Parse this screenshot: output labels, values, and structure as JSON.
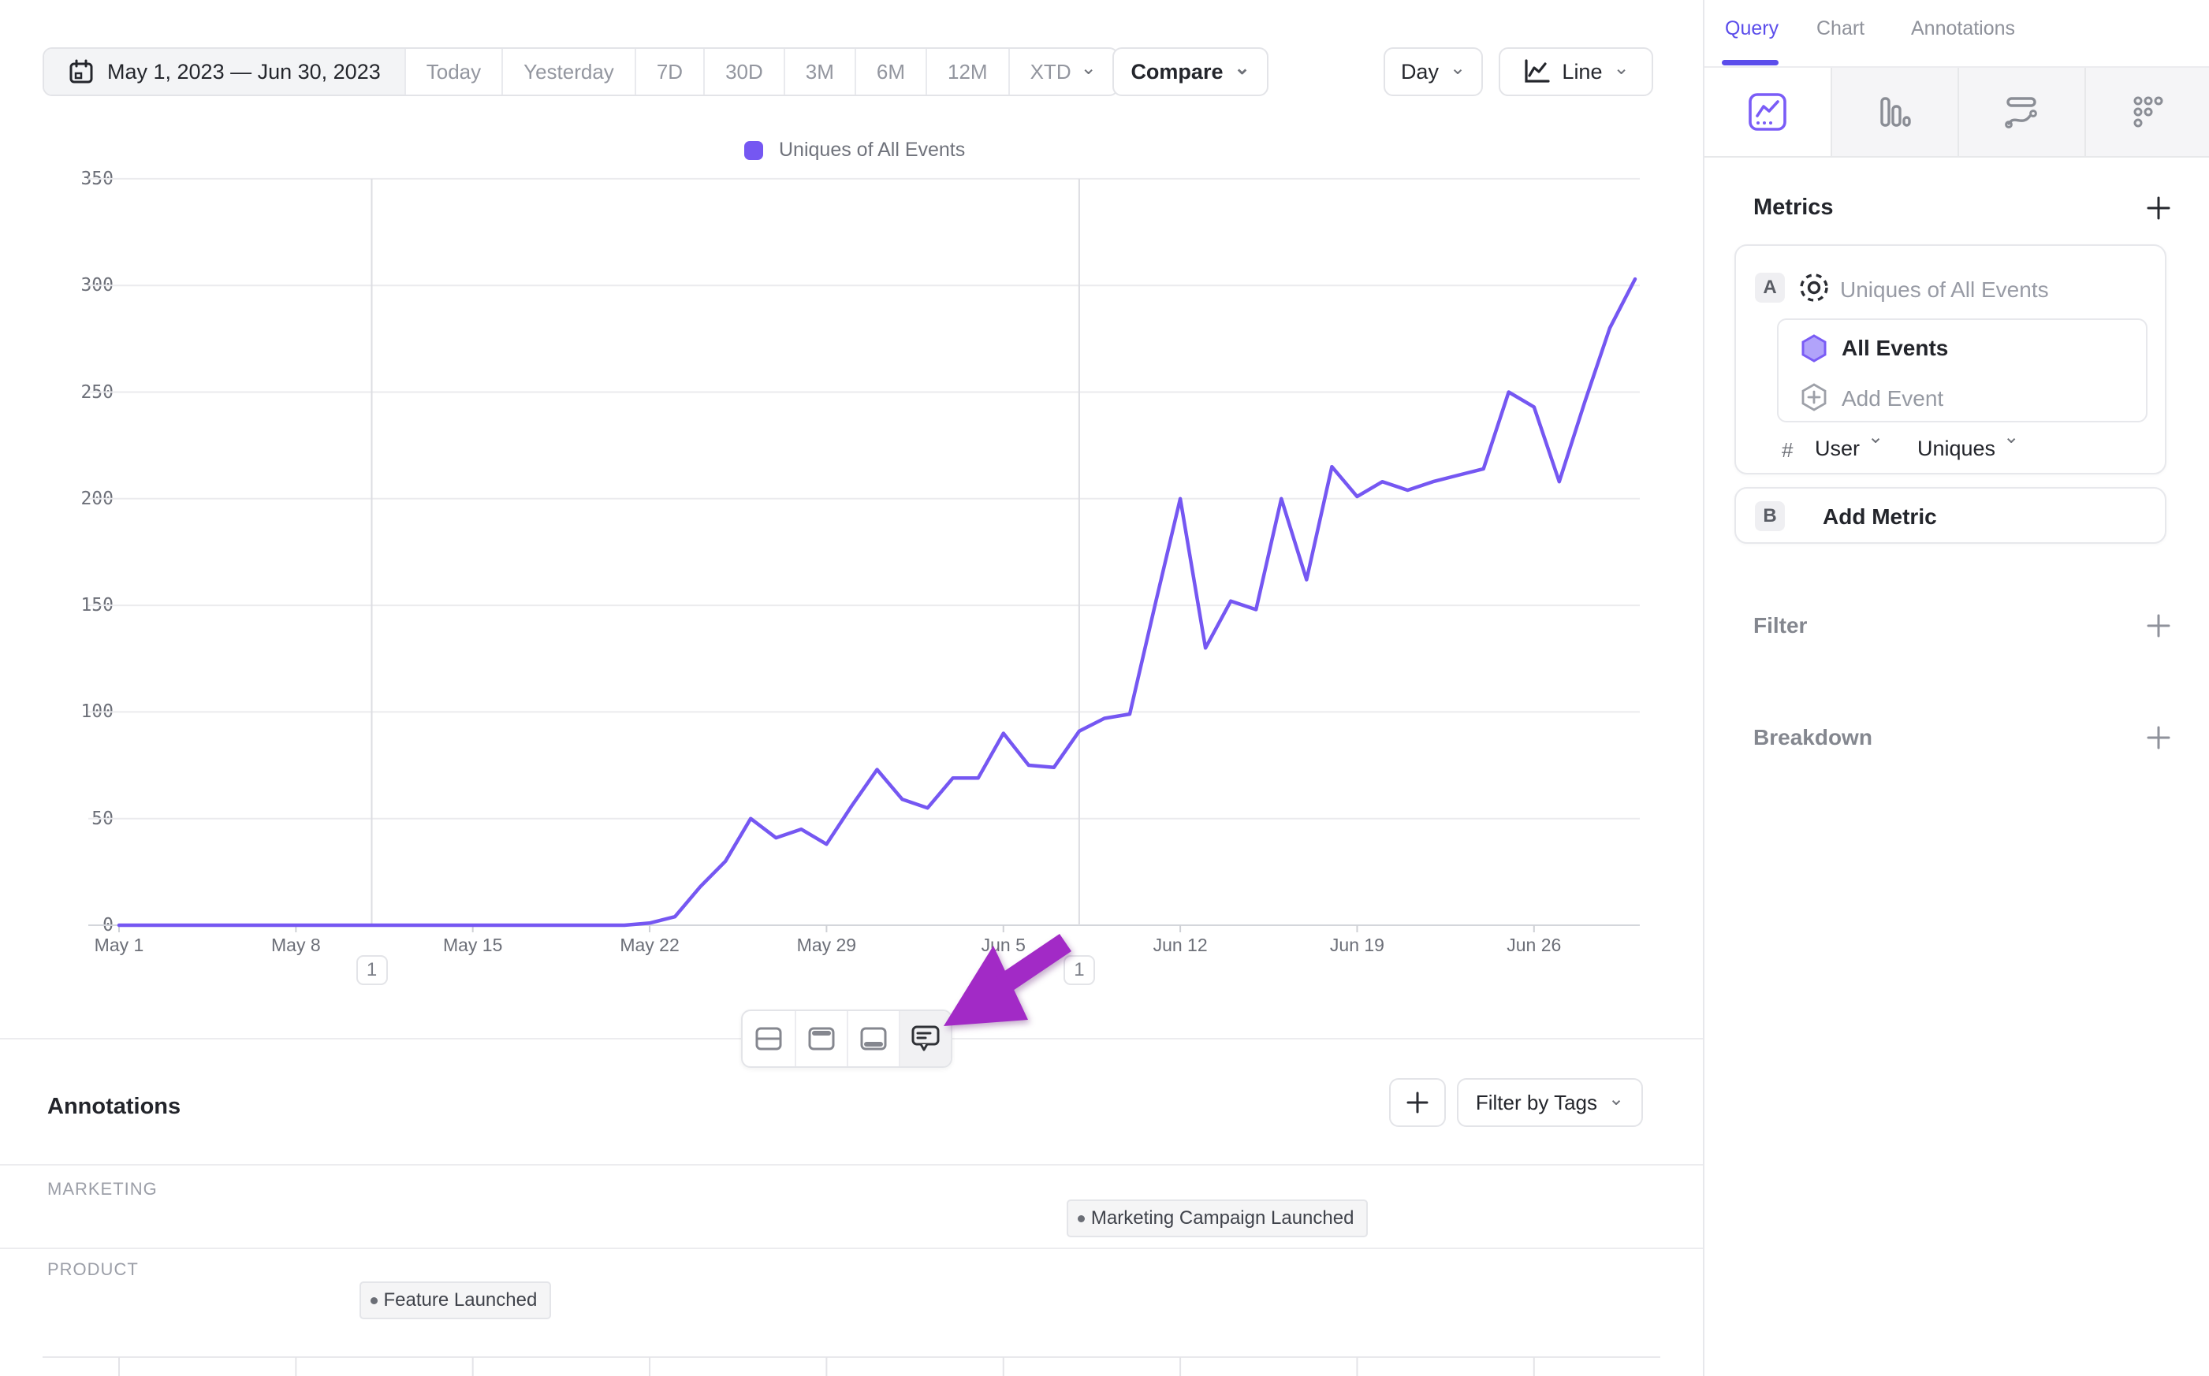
{
  "toolbar": {
    "date_range": "May 1, 2023 — Jun 30, 2023",
    "presets": [
      "Today",
      "Yesterday",
      "7D",
      "30D",
      "3M",
      "6M",
      "12M"
    ],
    "xtd_label": "XTD",
    "compare_label": "Compare",
    "granularity_label": "Day",
    "chart_type_label": "Line"
  },
  "legend": {
    "series_label": "Uniques of All Events"
  },
  "chart_data": {
    "type": "line",
    "title": "Uniques of All Events",
    "start_date": "May 1, 2023",
    "end_date": "Jun 30, 2023",
    "ylim": [
      0,
      350
    ],
    "y_ticks": [
      0,
      50,
      100,
      150,
      200,
      250,
      300,
      350
    ],
    "grid": "horizontal",
    "legend_position": "top-center",
    "x_ticks": [
      {
        "label": "May 1",
        "day": 0
      },
      {
        "label": "May 8",
        "day": 7
      },
      {
        "label": "May 15",
        "day": 14
      },
      {
        "label": "May 22",
        "day": 21
      },
      {
        "label": "May 29",
        "day": 28
      },
      {
        "label": "Jun 5",
        "day": 35
      },
      {
        "label": "Jun 12",
        "day": 42
      },
      {
        "label": "Jun 19",
        "day": 49
      },
      {
        "label": "Jun 26",
        "day": 56
      }
    ],
    "series": [
      {
        "name": "Uniques of All Events",
        "color": "#7557f2",
        "values": [
          0,
          0,
          0,
          0,
          0,
          0,
          0,
          0,
          0,
          0,
          0,
          0,
          0,
          0,
          0,
          0,
          0,
          0,
          0,
          0,
          0,
          1,
          4,
          18,
          30,
          50,
          41,
          45,
          38,
          56,
          73,
          59,
          55,
          69,
          69,
          90,
          75,
          74,
          91,
          97,
          99,
          150,
          200,
          130,
          152,
          148,
          200,
          162,
          215,
          201,
          208,
          204,
          208,
          211,
          214,
          250,
          243,
          208,
          245,
          280,
          303
        ]
      }
    ],
    "annotation_markers": [
      {
        "day": 10,
        "date": "May 11, 2023",
        "count": "1"
      },
      {
        "day": 38,
        "date": "Jun 8, 2023",
        "count": "1"
      }
    ]
  },
  "layout_toolbar": {
    "icons": [
      "split-rows-icon",
      "top-panel-icon",
      "bottom-panel-icon",
      "comment-bubble-icon"
    ],
    "active_index": 3
  },
  "annotations": {
    "title": "Annotations",
    "add_label": "+",
    "filter_button_label": "Filter by Tags",
    "lanes": [
      {
        "name": "MARKETING",
        "items": [
          {
            "label": "Marketing Campaign Launched",
            "day": 38
          }
        ]
      },
      {
        "name": "PRODUCT",
        "items": [
          {
            "label": "Feature Launched",
            "day": 10
          }
        ]
      }
    ]
  },
  "sidebar": {
    "tabs": [
      "Query",
      "Chart",
      "Annotations"
    ],
    "active_tab": "Query",
    "chart_type_icons": [
      "line-chart-icon",
      "bar-chart-icon",
      "flow-chart-icon",
      "dot-matrix-icon"
    ],
    "metrics": {
      "title": "Metrics",
      "add_icon": "+",
      "metric_a": {
        "badge": "A",
        "name": "Uniques of All Events",
        "event": "All Events",
        "add_event_label": "Add Event",
        "measure_prefix": "#",
        "measure_entity": "User",
        "measure_aggregation": "Uniques"
      },
      "metric_b": {
        "badge": "B",
        "label": "Add Metric"
      }
    },
    "filter": {
      "label": "Filter",
      "add_icon": "+"
    },
    "breakdown": {
      "label": "Breakdown",
      "add_icon": "+"
    }
  },
  "colors": {
    "accent_purple": "#7557f2",
    "tab_purple": "#5b4deb",
    "arrow_purple": "#a22ac6",
    "grid_line": "#ebebee",
    "axis_line": "#d4d6db",
    "annotation_line": "#dcdde2"
  },
  "icon_names": [
    "calendar-icon",
    "chevron-down-icon",
    "line-chart-icon",
    "bar-chart-icon",
    "flow-chart-icon",
    "dot-matrix-icon",
    "metric-target-icon",
    "hexagon-event-icon",
    "add-event-hexagon-icon",
    "plus-icon",
    "split-rows-icon",
    "top-panel-icon",
    "bottom-panel-icon",
    "comment-bubble-icon",
    "pointer-arrow-icon",
    "annotation-dot-icon"
  ]
}
